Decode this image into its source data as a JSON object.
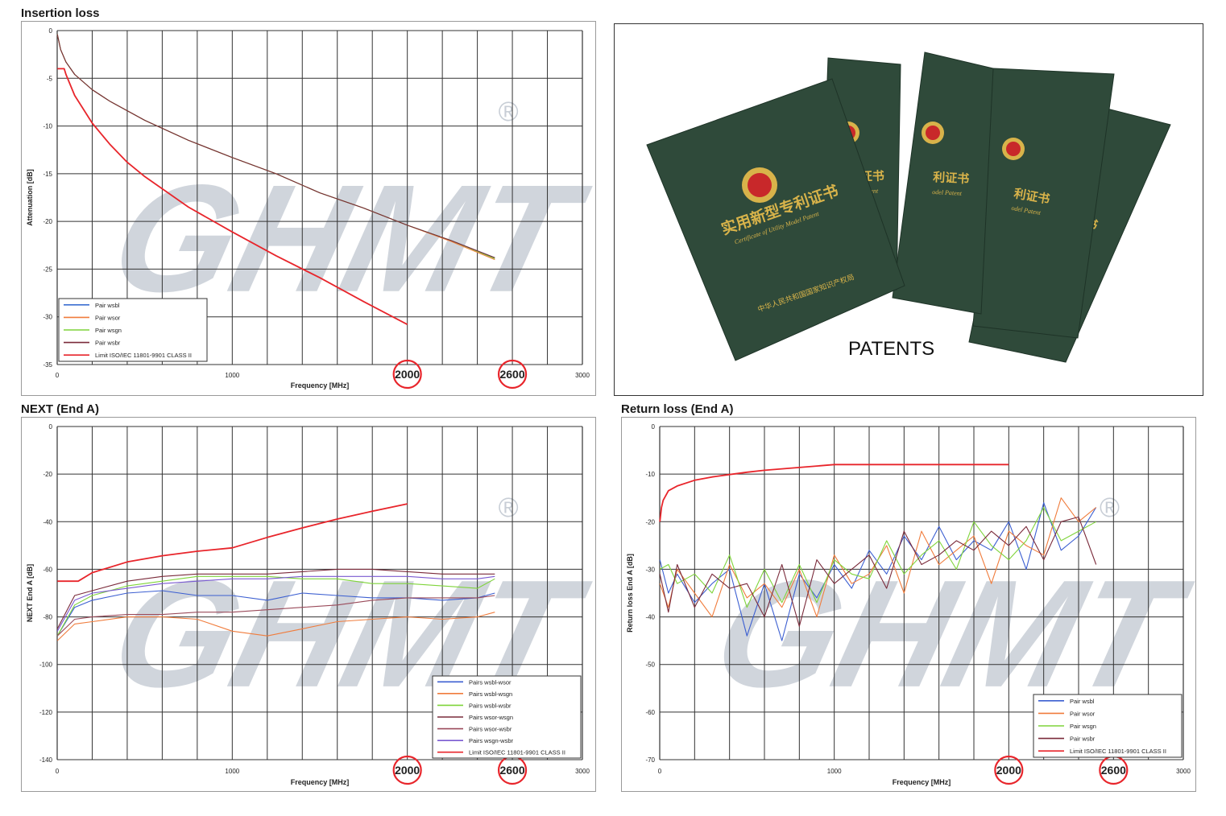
{
  "watermark": {
    "text": "GHMT",
    "mark": "®",
    "color": "#c8ced6"
  },
  "limit_color": "#e8252b",
  "circle_color": "#e8252b",
  "charts": {
    "insertion": {
      "title": "Insertion loss",
      "xlabel": "Frequency [MHz]",
      "ylabel": "Attenuation [dB]",
      "xticks": [
        "0",
        "1000",
        "3000"
      ],
      "yticks": [
        "0",
        "-5",
        "-10",
        "-15",
        "-20",
        "-25",
        "-30",
        "-35"
      ],
      "circled": [
        "2000",
        "2600"
      ],
      "legend": [
        "Pair wsbl",
        "Pair wsor",
        "Pair wsgn",
        "Pair wsbr",
        "Limit ISO/IEC 11801-9901 CLASS II"
      ]
    },
    "next": {
      "title": "NEXT (End A)",
      "xlabel": "Frequency [MHz]",
      "ylabel": "NEXT End A [dB]",
      "xticks": [
        "0",
        "1000",
        "3000"
      ],
      "yticks": [
        "0",
        "-20",
        "-40",
        "-60",
        "-80",
        "-100",
        "-120",
        "-140"
      ],
      "circled": [
        "2000",
        "2600"
      ],
      "legend": [
        "Pairs wsbl-wsor",
        "Pairs wsbl-wsgn",
        "Pairs wsbl-wsbr",
        "Pairs wsor-wsgn",
        "Pairs wsor-wsbr",
        "Pairs wsgn-wsbr",
        "Limit ISO/IEC 11801-9901 CLASS II"
      ]
    },
    "return": {
      "title": "Return loss (End A)",
      "xlabel": "Frequency [MHz]",
      "ylabel": "Return loss End A [dB]",
      "xticks": [
        "0",
        "1000",
        "3000"
      ],
      "yticks": [
        "0",
        "-10",
        "-20",
        "-30",
        "-40",
        "-50",
        "-60",
        "-70"
      ],
      "circled": [
        "2000",
        "2600"
      ],
      "legend": [
        "Pair wsbl",
        "Pair wsor",
        "Pair wsgn",
        "Pair wsbr",
        "Limit ISO/IEC 11801-9901 CLASS II"
      ]
    }
  },
  "patents": {
    "caption": "PATENTS",
    "cover_title": "实用新型专利证书",
    "cover_subtitle": "Certificate of Utility Model Patent",
    "cover_title_partial": "利证书",
    "cover_subtitle_partial": "odel Patent",
    "issuer": "中华人民共和国国家知识产权局",
    "cover_color": "#2f4a3a",
    "emblem_color": "#c8282a",
    "gold_color": "#d8b34a"
  },
  "chart_data": [
    {
      "type": "line",
      "title": "Insertion loss",
      "xlabel": "Frequency [MHz]",
      "ylabel": "Attenuation [dB]",
      "xlim": [
        0,
        3000
      ],
      "ylim": [
        -35,
        0
      ],
      "x": [
        1,
        20,
        50,
        100,
        200,
        300,
        500,
        750,
        1000,
        1250,
        1500,
        1750,
        2000,
        2250,
        2500
      ],
      "series": [
        {
          "name": "Pair wsbl",
          "color": "#3c6fd1",
          "values": [
            -0.4,
            -2.0,
            -3.3,
            -4.6,
            -6.2,
            -7.4,
            -9.4,
            -11.5,
            -13.3,
            -15.0,
            -17.0,
            -18.6,
            -20.4,
            -22.0,
            -23.8
          ]
        },
        {
          "name": "Pair wsor",
          "color": "#f07c3c",
          "values": [
            -0.4,
            -2.0,
            -3.3,
            -4.6,
            -6.2,
            -7.4,
            -9.4,
            -11.5,
            -13.3,
            -15.0,
            -17.0,
            -18.6,
            -20.4,
            -22.1,
            -24.0
          ]
        },
        {
          "name": "Pair wsgn",
          "color": "#7fd43a",
          "values": [
            -0.4,
            -2.0,
            -3.3,
            -4.6,
            -6.2,
            -7.4,
            -9.4,
            -11.5,
            -13.3,
            -15.0,
            -17.0,
            -18.6,
            -20.4,
            -22.0,
            -23.9
          ]
        },
        {
          "name": "Pair wsbr",
          "color": "#7a2a3a",
          "values": [
            -0.4,
            -2.0,
            -3.3,
            -4.6,
            -6.2,
            -7.4,
            -9.4,
            -11.5,
            -13.3,
            -15.0,
            -17.0,
            -18.6,
            -20.4,
            -22.0,
            -23.8
          ]
        },
        {
          "name": "Limit ISO/IEC 11801-9901 CLASS II",
          "color": "#e8252b",
          "x": [
            1,
            40,
            50,
            100,
            200,
            300,
            400,
            500,
            750,
            1000,
            1250,
            1500,
            1750,
            2000
          ],
          "values": [
            -4.0,
            -4.0,
            -4.6,
            -6.8,
            -9.7,
            -11.9,
            -13.8,
            -15.3,
            -18.5,
            -21.1,
            -23.6,
            -25.9,
            -28.4,
            -30.8
          ]
        }
      ]
    },
    {
      "type": "line",
      "title": "NEXT (End A)",
      "xlabel": "Frequency [MHz]",
      "ylabel": "NEXT End A [dB]",
      "xlim": [
        0,
        3000
      ],
      "ylim": [
        -140,
        0
      ],
      "x": [
        1,
        100,
        200,
        400,
        600,
        800,
        1000,
        1200,
        1400,
        1600,
        1800,
        2000,
        2200,
        2400,
        2500
      ],
      "series": [
        {
          "name": "Pairs wsbl-wsor",
          "color": "#3c5fd1",
          "values": [
            -88,
            -76,
            -73,
            -70,
            -69,
            -71,
            -71,
            -73,
            -70,
            -71,
            -72,
            -72,
            -73,
            -72,
            -70
          ]
        },
        {
          "name": "Pairs wsbl-wsgn",
          "color": "#f07c3c",
          "values": [
            -90,
            -83,
            -82,
            -80,
            -80,
            -81,
            -86,
            -88,
            -85,
            -82,
            -81,
            -80,
            -81,
            -80,
            -78
          ]
        },
        {
          "name": "Pairs wsbl-wsbr",
          "color": "#7fd43a",
          "values": [
            -88,
            -75,
            -71,
            -67,
            -65,
            -63,
            -63,
            -63,
            -64,
            -64,
            -66,
            -66,
            -67,
            -68,
            -64
          ]
        },
        {
          "name": "Pairs wsor-wsgn",
          "color": "#7a2a3a",
          "values": [
            -85,
            -71,
            -69,
            -65,
            -63,
            -62,
            -62,
            -62,
            -61,
            -60,
            -60,
            -61,
            -62,
            -62,
            -62
          ]
        },
        {
          "name": "Pairs wsor-wsbr",
          "color": "#9a4a5a",
          "values": [
            -88,
            -81,
            -80,
            -79,
            -79,
            -78,
            -78,
            -77,
            -76,
            -75,
            -73,
            -72,
            -72,
            -72,
            -71
          ]
        },
        {
          "name": "Pairs wsgn-wsbr",
          "color": "#7a5ad1",
          "values": [
            -86,
            -73,
            -70,
            -68,
            -66,
            -65,
            -64,
            -64,
            -63,
            -63,
            -63,
            -63,
            -64,
            -64,
            -63
          ]
        },
        {
          "name": "Limit ISO/IEC 11801-9901 CLASS II",
          "color": "#e8252b",
          "x": [
            1,
            120,
            200,
            400,
            600,
            800,
            1000,
            1200,
            1400,
            1600,
            1800,
            2000
          ],
          "values": [
            -65,
            -65,
            -61.4,
            -56.9,
            -54.3,
            -52.4,
            -51.0,
            -46.6,
            -42.6,
            -38.9,
            -35.6,
            -32.5
          ]
        }
      ]
    },
    {
      "type": "line",
      "title": "Return loss (End A)",
      "xlabel": "Frequency [MHz]",
      "ylabel": "Return loss End A [dB]",
      "xlim": [
        0,
        3000
      ],
      "ylim": [
        -70,
        0
      ],
      "x": [
        1,
        50,
        100,
        200,
        300,
        400,
        500,
        600,
        700,
        800,
        900,
        1000,
        1100,
        1200,
        1300,
        1400,
        1500,
        1600,
        1700,
        1800,
        1900,
        2000,
        2100,
        2200,
        2300,
        2400,
        2500
      ],
      "series": [
        {
          "name": "Pair wsbl",
          "color": "#3c5fd1",
          "values": [
            -28,
            -35,
            -31,
            -37,
            -33,
            -30,
            -44,
            -33,
            -45,
            -31,
            -36,
            -29,
            -34,
            -26,
            -31,
            -23,
            -28,
            -21,
            -28,
            -24,
            -26,
            -20,
            -30,
            -16,
            -26,
            -23,
            -17
          ]
        },
        {
          "name": "Pair wsor",
          "color": "#f07c3c",
          "values": [
            -33,
            -38,
            -30,
            -35,
            -40,
            -29,
            -36,
            -33,
            -38,
            -30,
            -40,
            -27,
            -33,
            -31,
            -25,
            -35,
            -22,
            -29,
            -26,
            -23,
            -33,
            -22,
            -25,
            -27,
            -15,
            -20,
            -17
          ]
        },
        {
          "name": "Pair wsgn",
          "color": "#7fd43a",
          "values": [
            -30,
            -29,
            -33,
            -31,
            -35,
            -27,
            -38,
            -30,
            -37,
            -29,
            -37,
            -28,
            -31,
            -32,
            -24,
            -31,
            -27,
            -24,
            -30,
            -20,
            -25,
            -28,
            -24,
            -17,
            -24,
            -22,
            -20
          ]
        },
        {
          "name": "Pair wsbr",
          "color": "#7a2a3a",
          "values": [
            -31,
            -39,
            -29,
            -38,
            -31,
            -34,
            -33,
            -40,
            -29,
            -42,
            -28,
            -33,
            -30,
            -27,
            -34,
            -22,
            -29,
            -27,
            -24,
            -26,
            -22,
            -25,
            -21,
            -28,
            -20,
            -19,
            -29
          ]
        },
        {
          "name": "Limit ISO/IEC 11801-9901 CLASS II",
          "color": "#e8252b",
          "x": [
            1,
            10,
            20,
            50,
            100,
            200,
            300,
            400,
            500,
            600,
            700,
            800,
            900,
            1000,
            2000
          ],
          "values": [
            -20,
            -17,
            -15.5,
            -13.5,
            -12.5,
            -11.3,
            -10.6,
            -10.1,
            -9.6,
            -9.2,
            -8.9,
            -8.6,
            -8.3,
            -8,
            -8
          ]
        }
      ]
    }
  ]
}
